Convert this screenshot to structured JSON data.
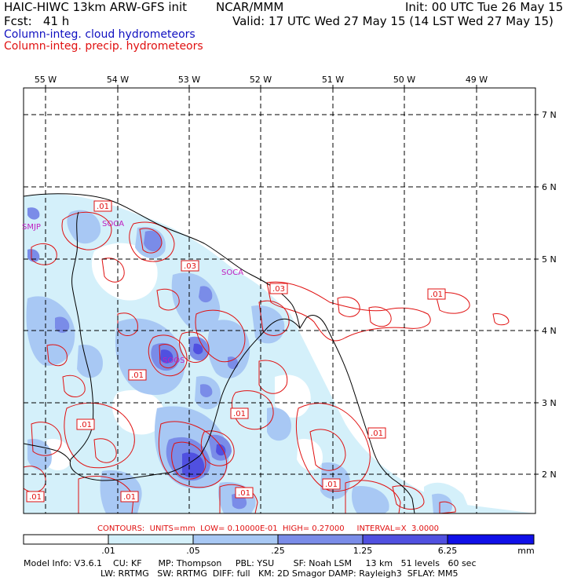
{
  "header": {
    "model": "HAIC-HIWC 13km ARW-GFS init",
    "org": "NCAR/MMM",
    "init": "Init: 00 UTC Tue 26 May 15",
    "fcst": "Fcst:   41 h",
    "valid": "Valid: 17 UTC Wed 27 May 15 (14 LST Wed 27 May 15)"
  },
  "legend": {
    "cloud": "Column-integ. cloud hydrometeors",
    "precip": "Column-integ. precip. hydrometeors",
    "cloud_color": "#1010c0",
    "precip_color": "#e01010"
  },
  "map": {
    "lon_labels": [
      "55 W",
      "54 W",
      "53 W",
      "52 W",
      "51 W",
      "50 W",
      "49 W"
    ],
    "lat_labels": [
      "7 N",
      "6 N",
      "5 N",
      "4 N",
      "3 N",
      "2 N"
    ],
    "stations": [
      "SMJP",
      "SOCA",
      "SOCA",
      "SOOS"
    ],
    "contour_labels": [
      ".01",
      ".03",
      ".03",
      ".01",
      ".01",
      ".01",
      ".01",
      ".01",
      ".01",
      ".01",
      ".01",
      ".01"
    ]
  },
  "contour_info": "CONTOURS:  UNITS=mm  LOW= 0.10000E-01  HIGH= 0.27000     INTERVAL=X  3.0000",
  "colorbar": {
    "ticks": [
      ".01",
      ".05",
      ".25",
      "1.25",
      "6.25",
      "mm"
    ],
    "colors": [
      "#ffffff",
      "#d4f0fa",
      "#a8c8f4",
      "#7a8ce8",
      "#5050e0",
      "#1010e8"
    ]
  },
  "footer": {
    "line1": "Model Info: V3.6.1    CU: KF      MP: Thompson     PBL: YSU       SF: Noah LSM     13 km   51 levels   60 sec",
    "line2": "LW: RRTMG   SW: RRTMG  DIFF: full   KM: 2D Smagor DAMP: Rayleigh3  SFLAY: MM5"
  }
}
